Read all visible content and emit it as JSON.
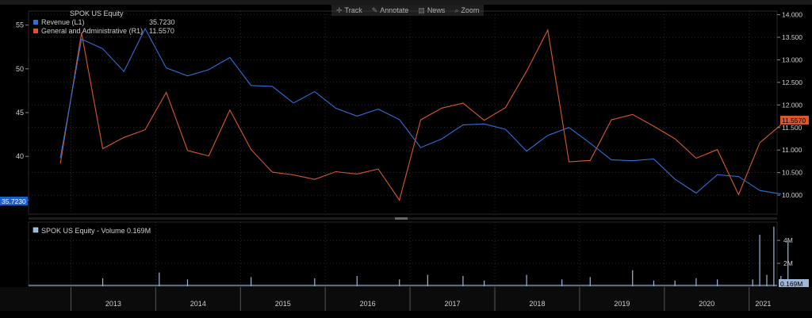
{
  "toolbar": {
    "track_label": "Track",
    "annotate_label": "Annotate",
    "news_label": "News",
    "zoom_label": "Zoom"
  },
  "colors": {
    "revenue": "#2f6fd6",
    "ga": "#d9582b",
    "volume": "#9fb6d6",
    "grid": "#3a3a3a",
    "text": "#cfcfcf"
  },
  "chart_data": [
    {
      "type": "line",
      "title": "SPOK US Equity",
      "x": [
        "2012Q4",
        "2013Q1",
        "2013Q2",
        "2013Q3",
        "2013Q4",
        "2014Q1",
        "2014Q2",
        "2014Q3",
        "2014Q4",
        "2015Q1",
        "2015Q2",
        "2015Q3",
        "2015Q4",
        "2016Q1",
        "2016Q2",
        "2016Q3",
        "2016Q4",
        "2017Q1",
        "2017Q2",
        "2017Q3",
        "2017Q4",
        "2018Q1",
        "2018Q2",
        "2018Q3",
        "2018Q4",
        "2019Q1",
        "2019Q2",
        "2019Q3",
        "2019Q4",
        "2020Q1",
        "2020Q2",
        "2020Q3",
        "2020Q4",
        "2021Q1",
        "2021Q2"
      ],
      "xticks": [
        "2013",
        "2014",
        "2015",
        "2016",
        "2017",
        "2018",
        "2019",
        "2020",
        "2021"
      ],
      "series": [
        {
          "name": "Revenue",
          "axis": "L1",
          "last_value": "35.7230",
          "values": [
            39.8,
            53.4,
            52.3,
            49.7,
            54.6,
            50.1,
            49.2,
            49.9,
            51.3,
            48.1,
            48.0,
            46.1,
            47.4,
            45.5,
            44.6,
            45.4,
            44.2,
            41.0,
            42.0,
            43.6,
            43.7,
            43.1,
            40.6,
            42.4,
            43.3,
            41.5,
            39.6,
            39.5,
            39.7,
            37.4,
            35.8,
            37.9,
            37.7,
            36.1,
            35.7
          ]
        },
        {
          "name": "General and Administrative",
          "axis": "R1",
          "last_value": "11.5570",
          "values": [
            10.7,
            13.6,
            11.03,
            11.28,
            11.45,
            12.28,
            10.99,
            10.87,
            11.89,
            11.01,
            10.51,
            10.45,
            10.35,
            10.52,
            10.47,
            10.58,
            9.89,
            11.67,
            11.93,
            12.04,
            11.66,
            11.94,
            12.75,
            13.66,
            10.74,
            10.77,
            11.67,
            11.79,
            11.53,
            11.25,
            10.82,
            11.01,
            10.01,
            11.16,
            11.56
          ]
        }
      ],
      "left_axis": {
        "ylim": [
          33.4,
          56.6
        ],
        "ticks": [
          "35",
          "40",
          "45",
          "50",
          "55"
        ]
      },
      "right_axis": {
        "ylim": [
          9.58,
          14.08
        ],
        "ticks": [
          "10.000",
          "10.500",
          "11.000",
          "11.500",
          "12.000",
          "12.500",
          "13.000",
          "13.500",
          "14.000"
        ]
      },
      "grid": true,
      "legend": "top-left"
    },
    {
      "type": "bar",
      "title": "SPOK US Equity - Volume 0.169M",
      "series": [
        {
          "name": "Volume",
          "last_value": "0.169M"
        }
      ],
      "spikes": [
        {
          "x": "2013-05",
          "value": 0.7
        },
        {
          "x": "2014-01",
          "value": 1.2
        },
        {
          "x": "2014-05",
          "value": 0.6
        },
        {
          "x": "2015-02",
          "value": 0.8
        },
        {
          "x": "2015-11",
          "value": 0.7
        },
        {
          "x": "2016-05",
          "value": 0.9
        },
        {
          "x": "2016-11",
          "value": 0.6
        },
        {
          "x": "2017-03",
          "value": 1.0
        },
        {
          "x": "2017-08",
          "value": 0.9
        },
        {
          "x": "2017-11",
          "value": 0.5
        },
        {
          "x": "2018-05",
          "value": 1.0
        },
        {
          "x": "2018-10",
          "value": 0.6
        },
        {
          "x": "2019-02",
          "value": 0.8
        },
        {
          "x": "2019-08",
          "value": 1.4
        },
        {
          "x": "2019-11",
          "value": 0.5
        },
        {
          "x": "2020-02",
          "value": 0.5
        },
        {
          "x": "2020-05",
          "value": 0.7
        },
        {
          "x": "2020-08",
          "value": 0.6
        },
        {
          "x": "2021-01",
          "value": 0.6
        },
        {
          "x": "2021-02",
          "value": 4.5
        },
        {
          "x": "2021-03",
          "value": 1.0
        },
        {
          "x": "2021-04",
          "value": 5.2
        },
        {
          "x": "2021-05",
          "value": 0.9
        },
        {
          "x": "2021-06",
          "value": 4.0
        }
      ],
      "base_volume": 0.15,
      "ylim": [
        0,
        5.6
      ],
      "ticks": [
        "2M",
        "4M"
      ]
    }
  ]
}
